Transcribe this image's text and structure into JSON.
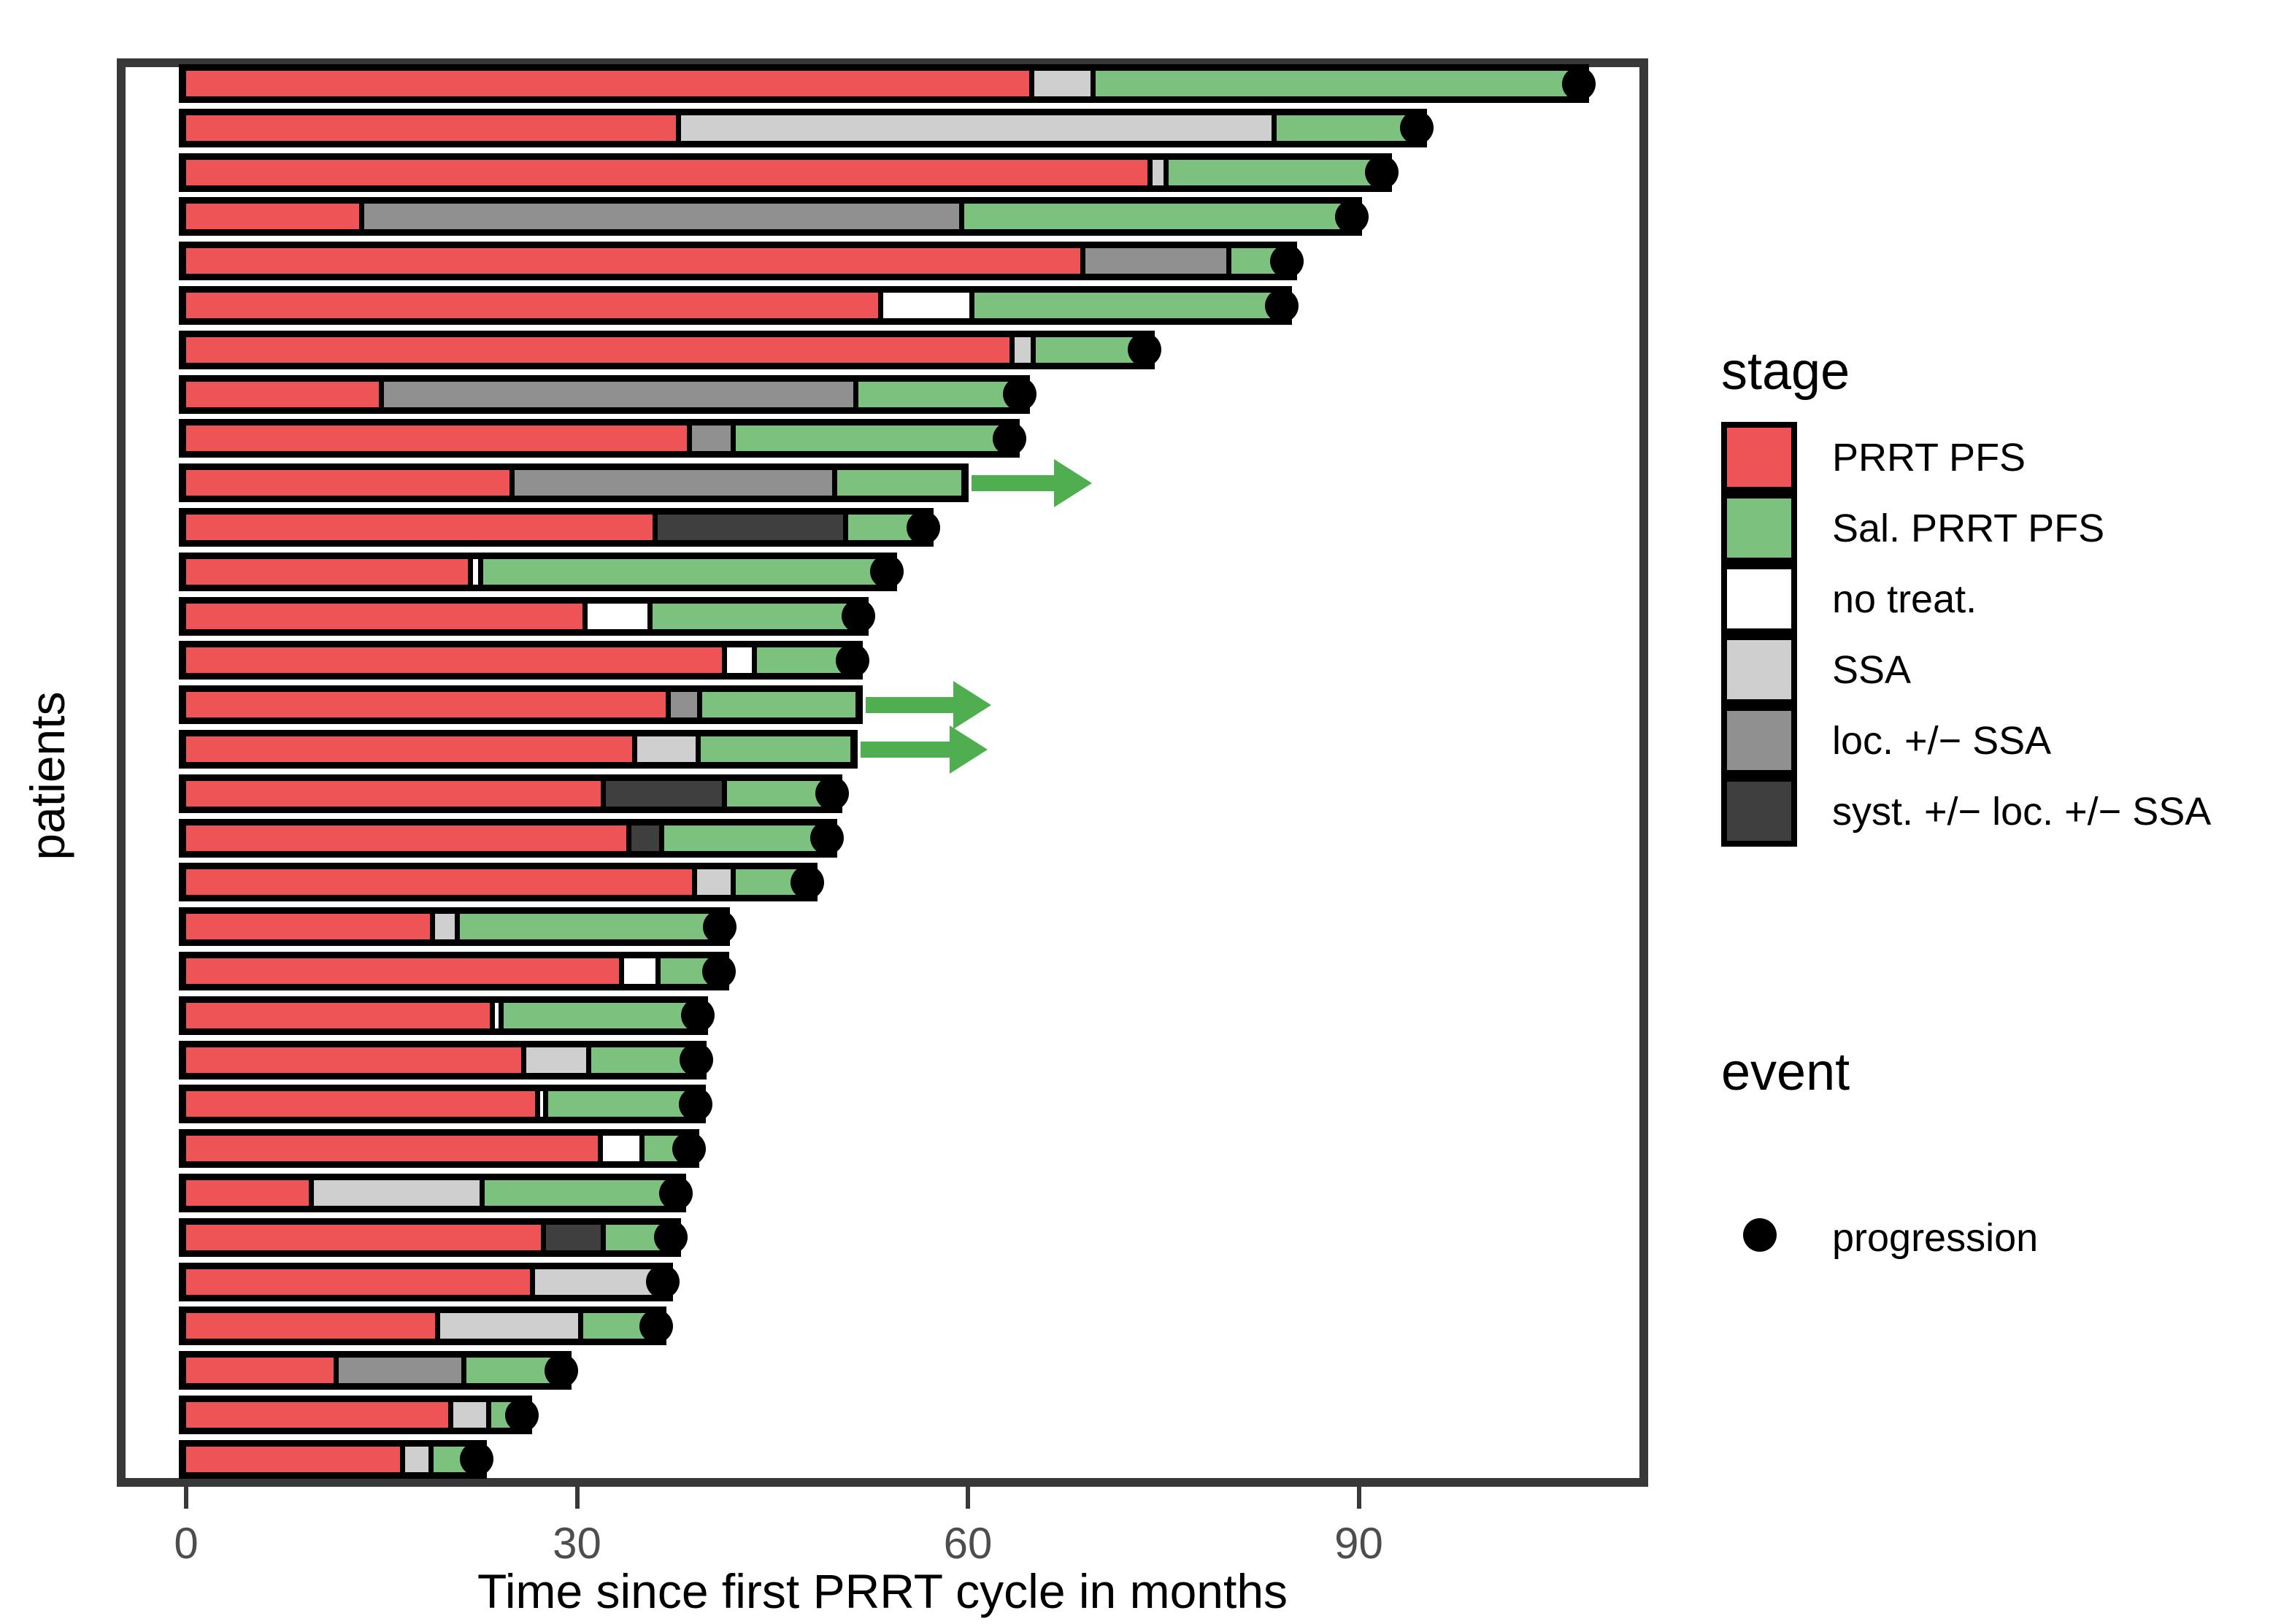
{
  "figure": {
    "y_axis_label": "patients",
    "x_axis_label": "Time since first PRRT cycle in months",
    "legend_stage": {
      "title": "stage",
      "entries": [
        {
          "stage": "prrt",
          "label": "PRRT PFS"
        },
        {
          "stage": "sal",
          "label": "Sal. PRRT PFS"
        },
        {
          "stage": "none",
          "label": "no treat."
        },
        {
          "stage": "ssa",
          "label": "SSA"
        },
        {
          "stage": "loc",
          "label": "loc. +/− SSA"
        },
        {
          "stage": "syst",
          "label": "syst. +/− loc. +/− SSA"
        }
      ]
    },
    "legend_event": {
      "title": "event",
      "entries": [
        {
          "marker": "dot",
          "label": "progression"
        }
      ]
    },
    "colors": {
      "prrt": "#EE5356",
      "sal": "#7CC17E",
      "none": "#FFFFFF",
      "ssa": "#CFCFCF",
      "loc": "#909090",
      "syst": "#3F3F3F",
      "arrow": "#4FAE50",
      "dot": "#000000",
      "panel_border": "#383838",
      "tick_label": "#4D4D4D"
    }
  },
  "chart_data": {
    "type": "bar",
    "subtype": "horizontal-stacked-swimmer",
    "title": "",
    "xlabel": "Time since first PRRT cycle in months",
    "ylabel": "patients",
    "xlim": [
      0,
      112
    ],
    "x_ticks": [
      0,
      30,
      60,
      90
    ],
    "grid": false,
    "legend_position": "right",
    "stage_labels": {
      "prrt": "PRRT PFS",
      "sal": "Sal. PRRT PFS",
      "none": "no treat.",
      "ssa": "SSA",
      "loc": "loc. +/- SSA",
      "syst": "syst. +/- loc. +/- SSA"
    },
    "event_labels": {
      "progression": "progression",
      "ongoing": "ongoing (arrow)"
    },
    "patients": [
      {
        "segments": [
          [
            "prrt",
            0,
            64.9
          ],
          [
            "ssa",
            64.9,
            69.6
          ],
          [
            "sal",
            69.6,
            107.1
          ]
        ],
        "event": "progression"
      },
      {
        "segments": [
          [
            "prrt",
            0,
            37.8
          ],
          [
            "ssa",
            37.8,
            83.5
          ],
          [
            "sal",
            83.5,
            94.7
          ]
        ],
        "event": "progression"
      },
      {
        "segments": [
          [
            "prrt",
            0,
            74.0
          ],
          [
            "ssa",
            74.0,
            75.2
          ],
          [
            "sal",
            75.2,
            92.0
          ]
        ],
        "event": "progression"
      },
      {
        "segments": [
          [
            "prrt",
            0,
            13.5
          ],
          [
            "loc",
            13.5,
            59.5
          ],
          [
            "sal",
            59.5,
            89.7
          ]
        ],
        "event": "progression"
      },
      {
        "segments": [
          [
            "prrt",
            0,
            68.8
          ],
          [
            "loc",
            68.8,
            80.0
          ],
          [
            "sal",
            80.0,
            84.7
          ]
        ],
        "event": "progression"
      },
      {
        "segments": [
          [
            "prrt",
            0,
            53.3
          ],
          [
            "none",
            53.3,
            60.3
          ],
          [
            "sal",
            60.3,
            84.3
          ]
        ],
        "event": "progression"
      },
      {
        "segments": [
          [
            "prrt",
            0,
            63.4
          ],
          [
            "ssa",
            63.4,
            65.0
          ],
          [
            "sal",
            65.0,
            73.8
          ]
        ],
        "event": "progression"
      },
      {
        "segments": [
          [
            "prrt",
            0,
            15.0
          ],
          [
            "loc",
            15.0,
            51.4
          ],
          [
            "sal",
            51.4,
            64.2
          ]
        ],
        "event": "progression"
      },
      {
        "segments": [
          [
            "prrt",
            0,
            38.6
          ],
          [
            "loc",
            38.6,
            42.0
          ],
          [
            "sal",
            42.0,
            63.4
          ]
        ],
        "event": "progression"
      },
      {
        "segments": [
          [
            "prrt",
            0,
            25.0
          ],
          [
            "loc",
            25.0,
            49.8
          ],
          [
            "sal",
            49.8,
            59.5
          ]
        ],
        "event": "ongoing",
        "arrow_to": 69.5
      },
      {
        "segments": [
          [
            "prrt",
            0,
            36.0
          ],
          [
            "syst",
            36.0,
            50.6
          ],
          [
            "sal",
            50.6,
            56.8
          ]
        ],
        "event": "progression"
      },
      {
        "segments": [
          [
            "prrt",
            0,
            21.8
          ],
          [
            "none",
            21.8,
            22.6
          ],
          [
            "sal",
            22.6,
            54.0
          ]
        ],
        "event": "progression"
      },
      {
        "segments": [
          [
            "prrt",
            0,
            30.6
          ],
          [
            "none",
            30.6,
            35.6
          ],
          [
            "sal",
            35.6,
            51.8
          ]
        ],
        "event": "progression"
      },
      {
        "segments": [
          [
            "prrt",
            0,
            41.3
          ],
          [
            "none",
            41.3,
            43.6
          ],
          [
            "sal",
            43.6,
            51.4
          ]
        ],
        "event": "progression"
      },
      {
        "segments": [
          [
            "prrt",
            0,
            37.0
          ],
          [
            "loc",
            37.0,
            39.4
          ],
          [
            "sal",
            39.4,
            51.4
          ]
        ],
        "event": "ongoing",
        "arrow_to": 61.8
      },
      {
        "segments": [
          [
            "prrt",
            0,
            34.4
          ],
          [
            "ssa",
            34.4,
            39.3
          ],
          [
            "sal",
            39.3,
            51.0
          ]
        ],
        "event": "ongoing",
        "arrow_to": 61.5
      },
      {
        "segments": [
          [
            "prrt",
            0,
            32.0
          ],
          [
            "syst",
            32.0,
            41.3
          ],
          [
            "sal",
            41.3,
            49.8
          ]
        ],
        "event": "progression"
      },
      {
        "segments": [
          [
            "prrt",
            0,
            34.0
          ],
          [
            "syst",
            34.0,
            36.5
          ],
          [
            "sal",
            36.5,
            49.4
          ]
        ],
        "event": "progression"
      },
      {
        "segments": [
          [
            "prrt",
            0,
            39.0
          ],
          [
            "ssa",
            39.0,
            42.0
          ],
          [
            "sal",
            42.0,
            47.9
          ]
        ],
        "event": "progression"
      },
      {
        "segments": [
          [
            "prrt",
            0,
            18.9
          ],
          [
            "ssa",
            18.9,
            20.8
          ],
          [
            "sal",
            20.8,
            41.2
          ]
        ],
        "event": "progression"
      },
      {
        "segments": [
          [
            "prrt",
            0,
            33.4
          ],
          [
            "none",
            33.4,
            36.2
          ],
          [
            "sal",
            36.2,
            41.1
          ]
        ],
        "event": "progression"
      },
      {
        "segments": [
          [
            "prrt",
            0,
            23.5
          ],
          [
            "none",
            23.5,
            24.2
          ],
          [
            "sal",
            24.2,
            39.5
          ]
        ],
        "event": "progression"
      },
      {
        "segments": [
          [
            "prrt",
            0,
            25.9
          ],
          [
            "ssa",
            25.9,
            30.9
          ],
          [
            "sal",
            30.9,
            39.4
          ]
        ],
        "event": "progression"
      },
      {
        "segments": [
          [
            "prrt",
            0,
            27.0
          ],
          [
            "none",
            27.0,
            27.6
          ],
          [
            "sal",
            27.6,
            39.3
          ]
        ],
        "event": "progression"
      },
      {
        "segments": [
          [
            "prrt",
            0,
            31.8
          ],
          [
            "none",
            31.8,
            35.0
          ],
          [
            "sal",
            35.0,
            38.8
          ]
        ],
        "event": "progression"
      },
      {
        "segments": [
          [
            "prrt",
            0,
            9.6
          ],
          [
            "ssa",
            9.6,
            22.7
          ],
          [
            "sal",
            22.7,
            37.8
          ]
        ],
        "event": "progression"
      },
      {
        "segments": [
          [
            "prrt",
            0,
            27.4
          ],
          [
            "syst",
            27.4,
            32.0
          ],
          [
            "sal",
            32.0,
            37.4
          ]
        ],
        "event": "progression"
      },
      {
        "segments": [
          [
            "prrt",
            0,
            26.6
          ],
          [
            "ssa",
            26.6,
            36.0
          ],
          [
            "sal",
            36.0,
            36.8
          ]
        ],
        "event": "progression"
      },
      {
        "segments": [
          [
            "prrt",
            0,
            19.3
          ],
          [
            "ssa",
            19.3,
            30.3
          ],
          [
            "sal",
            30.3,
            36.3
          ]
        ],
        "event": "progression"
      },
      {
        "segments": [
          [
            "prrt",
            0,
            11.5
          ],
          [
            "loc",
            11.5,
            21.3
          ],
          [
            "sal",
            21.3,
            29.0
          ]
        ],
        "event": "progression"
      },
      {
        "segments": [
          [
            "prrt",
            0,
            20.3
          ],
          [
            "ssa",
            20.3,
            23.2
          ],
          [
            "sal",
            23.2,
            26.0
          ]
        ],
        "event": "progression"
      },
      {
        "segments": [
          [
            "prrt",
            0,
            16.6
          ],
          [
            "ssa",
            16.6,
            18.8
          ],
          [
            "sal",
            18.8,
            22.5
          ]
        ],
        "event": "progression"
      }
    ]
  }
}
